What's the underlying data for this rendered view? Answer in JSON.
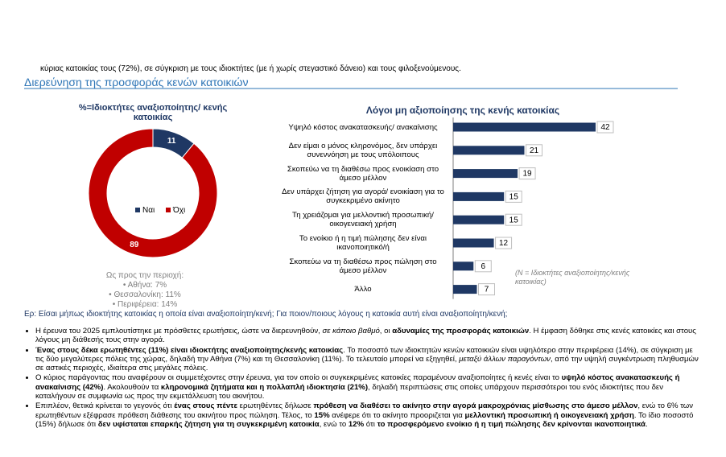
{
  "intro": "κύριας κατοικίας τους (72%), σε σύγκριση με τους ιδιοκτήτες (με ή χωρίς στεγαστικό δάνειο) και τους φιλοξενούμενους.",
  "heading": "Διερεύνηση της προσφοράς κενών κατοικιών",
  "chart_data": [
    {
      "type": "pie",
      "title": "%=Ιδιοκτήτες  αναξιοποίητης/ κενής κατοικίας",
      "categories": [
        "Ναι",
        "Όχι"
      ],
      "values": [
        11,
        89
      ],
      "colors": [
        "#1f3864",
        "#c00000"
      ],
      "donut": true,
      "legend": "center"
    },
    {
      "type": "hbar",
      "title": "Λόγοι μη αξιοποίησης της κενής κατοικίας",
      "categories": [
        "Υψηλό κόστος ανακατασκευής/ ανακαίνισης",
        "Δεν είμαι ο μόνος κληρονόμος, δεν υπάρχει συνεννόηση με τους υπόλοιπους",
        "Σκοπεύω να τη διαθέσω προς ενοικίαση στο άμεσο μέλλον",
        "Δεν υπάρχει ζήτηση για αγορά/ ενοικίαση για το συγκεκριμένο ακίνητο",
        "Τη χρειάζομαι για μελλοντική προσωπική/οικογενειακή χρήση",
        "Το ενοίκιο ή η τιμή πώλησης δεν είναι ικανοποιητικό/ή",
        "Σκοπεύω να τη διαθέσω προς πώληση στο άμεσο μέλλον",
        "Άλλο"
      ],
      "values": [
        42,
        21,
        19,
        15,
        15,
        12,
        6,
        7
      ],
      "color": "#1f3864",
      "annotation": "(N = Ιδιοκτήτες αναξιοποίητης/κενής κατοικίας)"
    }
  ],
  "region_note": {
    "title": "Ως προς την περιοχή:",
    "items": [
      "Αθήνα: 7%",
      "Θεσσαλονίκη: 11%",
      "Περιφέρεια: 14%"
    ]
  },
  "question": "Ερ: Είσαι μήπως ιδιοκτήτης κατοικίας η οποία είναι αναξιοποίητη/κενή; Για ποιον/ποιους λόγους η κατοικία αυτή είναι αναξιοποίητη/κενή;",
  "bullets": [
    [
      {
        "text": "Η έρευνα του 2025 εμπλουτίστηκε με πρόσθετες ερωτήσεις, ώστε να διερευνηθούν, ",
        "style": "normal"
      },
      {
        "text": "σε κάποιο βαθμό",
        "style": "italic"
      },
      {
        "text": ", οι ",
        "style": "normal"
      },
      {
        "text": "αδυναμίες της προσφοράς κατοικιών",
        "style": "bold"
      },
      {
        "text": ". Η έμφαση δόθηκε στις κενές κατοικίες και στους λόγους μη διάθεσής τους στην αγορά.",
        "style": "normal"
      }
    ],
    [
      {
        "text": "Ένας στους δέκα ερωτηθέντες (11%) είναι ιδιοκτήτης αναξιοποίητης/κενής κατοικίας",
        "style": "bold"
      },
      {
        "text": ". Το ποσοστό των ιδιοκτητών κενών κατοικιών είναι υψηλότερο στην περιφέρεια (14%), σε σύγκριση με τις δύο μεγαλύτερες πόλεις της χώρας, δηλαδή την Αθήνα (7%) και τη Θεσσαλονίκη (11%). Το τελευταίο μπορεί να εξηγηθεί, ",
        "style": "normal"
      },
      {
        "text": "μεταξύ άλλων παραγόντων",
        "style": "italic"
      },
      {
        "text": ", από την υψηλή συγκέντρωση πληθυσμών σε αστικές περιοχές, ιδιαίτερα στις μεγάλες πόλεις.",
        "style": "normal"
      }
    ],
    [
      {
        "text": "Ο κύριος παράγοντας που αναφέρουν οι συμμετέχοντες στην έρευνα, για τον οποίο οι συγκεκριμένες κατοικίες παραμένουν αναξιοποίητες ή κενές είναι το ",
        "style": "normal"
      },
      {
        "text": "υψηλό κόστος ανακατασκευής ή ανακαίνισης (42%)",
        "style": "bold"
      },
      {
        "text": ". Ακολουθούν τα ",
        "style": "normal"
      },
      {
        "text": "κληρονομικά ζητήματα και η πολλαπλή ιδιοκτησία (21%)",
        "style": "bold"
      },
      {
        "text": ", δηλαδή περιπτώσεις στις οποίες υπάρχουν περισσότεροι του ενός ιδιοκτήτες που δεν καταλήγουν σε συμφωνία ως προς την εκμετάλλευση του ακινήτου.",
        "style": "normal"
      }
    ],
    [
      {
        "text": "Επιπλέον, θετικά κρίνεται το γεγονός ότι ",
        "style": "normal"
      },
      {
        "text": "ένας στους πέντε",
        "style": "bold"
      },
      {
        "text": " ερωτηθέντες δήλωσε ",
        "style": "normal"
      },
      {
        "text": "πρόθεση να διαθέσει το ακίνητο στην αγορά μακροχρόνιας μίσθωσης στο άμεσο μέλλον",
        "style": "bold"
      },
      {
        "text": ", ενώ το 6% των ερωτηθέντων εξέφρασε πρόθεση διάθεσης του ακινήτου προς πώληση. Τέλος, το ",
        "style": "normal"
      },
      {
        "text": "15%",
        "style": "bold"
      },
      {
        "text": " ανέφερε ότι το ακίνητο προοριζεται για ",
        "style": "normal"
      },
      {
        "text": "μελλοντική προσωπική ή οικογενειακή χρήση",
        "style": "bold"
      },
      {
        "text": ". Το ίδιο ποσοστό (15%) δήλωσε ότι ",
        "style": "normal"
      },
      {
        "text": "δεν υφίσταται επαρκής ζήτηση για τη συγκεκριμένη κατοικία",
        "style": "bold"
      },
      {
        "text": ", ενώ το ",
        "style": "normal"
      },
      {
        "text": "12%",
        "style": "bold"
      },
      {
        "text": " ότι ",
        "style": "normal"
      },
      {
        "text": "το προσφερόμενο ενοίκιο ή η τιμή πώλησης δεν κρίνονται ικανοποιητικά",
        "style": "bold"
      },
      {
        "text": ".",
        "style": "normal"
      }
    ]
  ]
}
